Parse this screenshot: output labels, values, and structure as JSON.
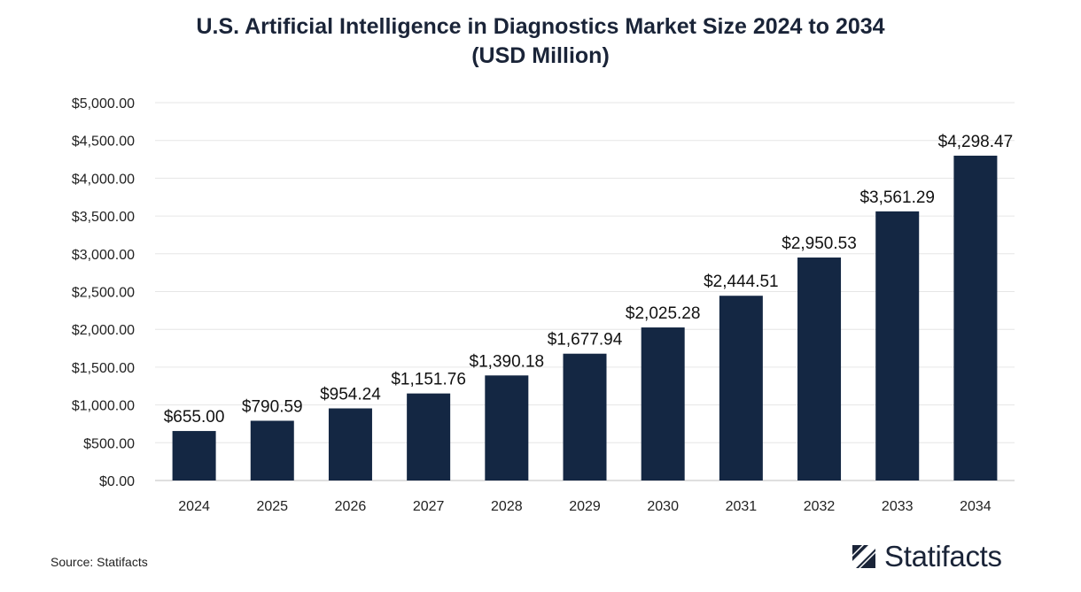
{
  "title_line1": "U.S. Artificial Intelligence in Diagnostics Market Size 2024 to 2034",
  "title_line2": "(USD Million)",
  "source": "Source: Statifacts",
  "brand": "Statifacts",
  "colors": {
    "bar": "#142743",
    "grid": "#e6e6e6",
    "axis": "#bfbfbf"
  },
  "chart_data": {
    "type": "bar",
    "title": "U.S. Artificial Intelligence in Diagnostics Market Size 2024 to 2034 (USD Million)",
    "categories": [
      "2024",
      "2025",
      "2026",
      "2027",
      "2028",
      "2029",
      "2030",
      "2031",
      "2032",
      "2033",
      "2034"
    ],
    "values": [
      655.0,
      790.59,
      954.24,
      1151.76,
      1390.18,
      1677.94,
      2025.28,
      2444.51,
      2950.53,
      3561.29,
      4298.47
    ],
    "value_labels": [
      "$655.00",
      "$790.59",
      "$954.24",
      "$1,151.76",
      "$1,390.18",
      "$1,677.94",
      "$2,025.28",
      "$2,444.51",
      "$2,950.53",
      "$3,561.29",
      "$4,298.47"
    ],
    "ylim": [
      0,
      5000
    ],
    "yticks": [
      0,
      500,
      1000,
      1500,
      2000,
      2500,
      3000,
      3500,
      4000,
      4500,
      5000
    ],
    "ytick_labels": [
      "$0.00",
      "$500.00",
      "$1,000.00",
      "$1,500.00",
      "$2,000.00",
      "$2,500.00",
      "$3,000.00",
      "$3,500.00",
      "$4,000.00",
      "$4,500.00",
      "$5,000.00"
    ],
    "grid": true,
    "legend": "none"
  }
}
